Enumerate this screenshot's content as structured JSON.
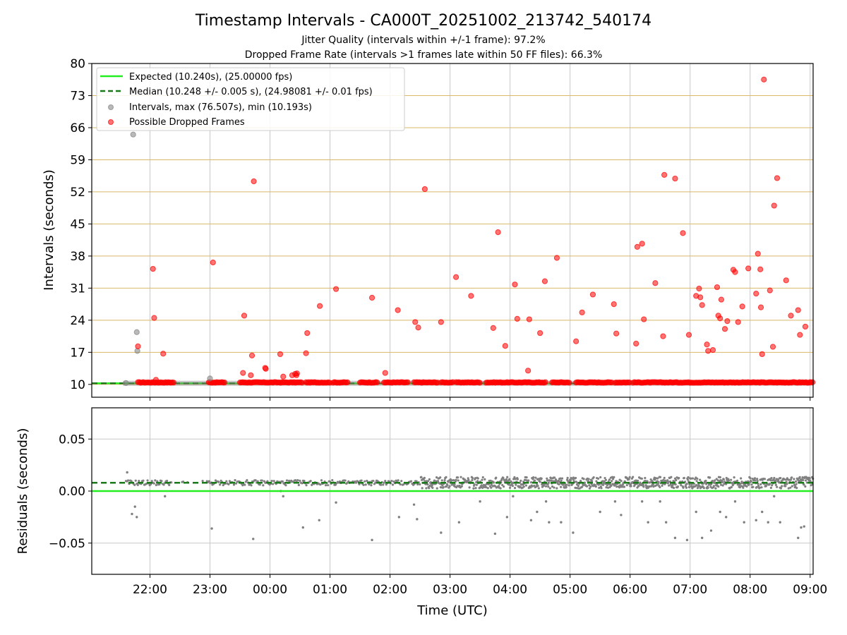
{
  "chart_data": [
    {
      "type": "scatter",
      "title": "Timestamp Intervals - CA000T_20251002_213742_540174",
      "subtitle_1": "Jitter Quality (intervals within +/-1 frame): 97.2%",
      "subtitle_2": "Dropped Frame Rate (intervals >1 frames late within 50 FF files): 66.3%",
      "xlabel": "",
      "ylabel": "Intervals (seconds)",
      "ylim": [
        7.2,
        80
      ],
      "yticks": [
        "10",
        "17",
        "24",
        "31",
        "38",
        "45",
        "52",
        "59",
        "66",
        "73",
        "80"
      ],
      "xlim_hours": [
        21.03,
        33.05
      ],
      "grid": "x gray, y goldenrod",
      "legend": {
        "position": "top-left",
        "entries": [
          "Expected (10.240s), (25.00000 fps)",
          "Median (10.248 +/- 0.005 s), (24.98081 +/- 0.01 fps)",
          "Intervals, max (76.507s), min (10.193s)",
          "Possible Dropped Frames"
        ]
      },
      "expected": 10.24,
      "median": 10.248,
      "interval_outliers": [
        [
          21.72,
          64.5
        ],
        [
          21.78,
          21.4
        ],
        [
          21.79,
          17.3
        ],
        [
          23.0,
          11.3
        ],
        [
          21.6,
          10.3
        ]
      ],
      "dropped_frames": [
        [
          21.8,
          18.3
        ],
        [
          22.05,
          35.2
        ],
        [
          22.07,
          24.5
        ],
        [
          22.1,
          11.0
        ],
        [
          22.22,
          16.7
        ],
        [
          23.05,
          36.6
        ],
        [
          23.55,
          12.5
        ],
        [
          23.57,
          25.0
        ],
        [
          23.68,
          12.0
        ],
        [
          23.7,
          16.3
        ],
        [
          23.73,
          54.3
        ],
        [
          23.92,
          13.6
        ],
        [
          23.93,
          13.4
        ],
        [
          24.17,
          16.6
        ],
        [
          24.22,
          11.7
        ],
        [
          24.37,
          12.0
        ],
        [
          24.42,
          12.3
        ],
        [
          24.44,
          12.0
        ],
        [
          24.45,
          12.4
        ],
        [
          24.6,
          16.8
        ],
        [
          24.62,
          21.2
        ],
        [
          24.83,
          27.1
        ],
        [
          25.1,
          30.8
        ],
        [
          25.7,
          28.9
        ],
        [
          25.92,
          12.5
        ],
        [
          26.13,
          26.2
        ],
        [
          26.42,
          23.6
        ],
        [
          26.47,
          22.4
        ],
        [
          26.58,
          52.6
        ],
        [
          26.85,
          23.6
        ],
        [
          27.1,
          33.4
        ],
        [
          27.35,
          29.3
        ],
        [
          27.72,
          22.3
        ],
        [
          27.8,
          43.2
        ],
        [
          27.92,
          18.4
        ],
        [
          28.08,
          31.8
        ],
        [
          28.12,
          24.3
        ],
        [
          28.3,
          13.0
        ],
        [
          28.32,
          24.2
        ],
        [
          28.5,
          21.2
        ],
        [
          28.58,
          32.5
        ],
        [
          28.78,
          37.6
        ],
        [
          29.1,
          19.4
        ],
        [
          29.2,
          25.7
        ],
        [
          29.38,
          29.6
        ],
        [
          29.73,
          27.5
        ],
        [
          29.77,
          21.1
        ],
        [
          30.1,
          18.9
        ],
        [
          30.12,
          40.0
        ],
        [
          30.2,
          40.7
        ],
        [
          30.23,
          24.2
        ],
        [
          30.42,
          32.1
        ],
        [
          30.55,
          20.5
        ],
        [
          30.57,
          55.7
        ],
        [
          30.75,
          54.9
        ],
        [
          30.88,
          43.0
        ],
        [
          30.98,
          20.8
        ],
        [
          31.1,
          29.3
        ],
        [
          31.15,
          30.9
        ],
        [
          31.17,
          29.0
        ],
        [
          31.2,
          27.3
        ],
        [
          31.28,
          18.7
        ],
        [
          31.3,
          17.3
        ],
        [
          31.38,
          17.5
        ],
        [
          31.45,
          31.2
        ],
        [
          31.47,
          25.0
        ],
        [
          31.5,
          24.4
        ],
        [
          31.52,
          28.5
        ],
        [
          31.58,
          22.1
        ],
        [
          31.62,
          23.8
        ],
        [
          31.72,
          35.0
        ],
        [
          31.75,
          34.5
        ],
        [
          31.8,
          23.6
        ],
        [
          31.87,
          27.0
        ],
        [
          31.97,
          35.3
        ],
        [
          32.1,
          29.8
        ],
        [
          32.13,
          38.5
        ],
        [
          32.17,
          35.1
        ],
        [
          32.18,
          26.8
        ],
        [
          32.2,
          16.6
        ],
        [
          32.23,
          76.5
        ],
        [
          32.33,
          30.5
        ],
        [
          32.38,
          18.2
        ],
        [
          32.4,
          49.0
        ],
        [
          32.45,
          55.0
        ],
        [
          32.6,
          32.7
        ],
        [
          32.68,
          25.0
        ],
        [
          32.8,
          26.2
        ],
        [
          32.83,
          20.8
        ],
        [
          32.92,
          22.6
        ]
      ],
      "baseline_dropped_segments": [
        [
          21.8,
          22.4
        ],
        [
          22.98,
          23.25
        ],
        [
          23.5,
          24.55
        ],
        [
          24.6,
          25.0
        ],
        [
          25.05,
          25.3
        ],
        [
          25.5,
          25.8
        ],
        [
          25.9,
          26.3
        ],
        [
          26.4,
          26.8
        ],
        [
          26.85,
          27.05
        ],
        [
          27.1,
          27.5
        ],
        [
          27.6,
          28.6
        ],
        [
          28.7,
          29.0
        ],
        [
          29.1,
          29.7
        ],
        [
          29.75,
          30.0
        ],
        [
          30.05,
          33.05
        ]
      ]
    },
    {
      "type": "scatter",
      "ylabel": "Residuals (seconds)",
      "xlabel": "Time (UTC)",
      "ylim": [
        -0.08,
        0.08
      ],
      "yticks": [
        "−0.05",
        "0.00",
        "0.05"
      ],
      "xticks": [
        "22:00",
        "23:00",
        "00:00",
        "01:00",
        "02:00",
        "03:00",
        "04:00",
        "05:00",
        "06:00",
        "07:00",
        "08:00",
        "09:00"
      ],
      "expected_residual": 0.0,
      "median_residual": 0.008,
      "outliers": [
        [
          21.62,
          0.018
        ],
        [
          21.7,
          -0.022
        ],
        [
          21.75,
          -0.015
        ],
        [
          21.78,
          -0.025
        ],
        [
          22.25,
          -0.005
        ],
        [
          23.03,
          -0.036
        ],
        [
          23.72,
          -0.046
        ],
        [
          24.18,
          0.0
        ],
        [
          24.22,
          -0.005
        ],
        [
          24.55,
          -0.035
        ],
        [
          24.82,
          -0.028
        ],
        [
          25.1,
          -0.011
        ],
        [
          25.7,
          -0.047
        ],
        [
          26.15,
          -0.025
        ],
        [
          26.4,
          -0.013
        ],
        [
          26.45,
          -0.027
        ],
        [
          26.85,
          -0.04
        ],
        [
          27.15,
          -0.03
        ],
        [
          27.5,
          -0.01
        ],
        [
          27.75,
          -0.041
        ],
        [
          27.95,
          -0.025
        ],
        [
          28.05,
          -0.005
        ],
        [
          28.35,
          -0.028
        ],
        [
          28.45,
          -0.02
        ],
        [
          28.6,
          -0.01
        ],
        [
          28.65,
          -0.03
        ],
        [
          28.85,
          -0.03
        ],
        [
          29.05,
          -0.04
        ],
        [
          29.5,
          -0.02
        ],
        [
          29.75,
          -0.01
        ],
        [
          29.85,
          -0.023
        ],
        [
          30.2,
          -0.01
        ],
        [
          30.3,
          -0.03
        ],
        [
          30.5,
          -0.01
        ],
        [
          30.6,
          -0.03
        ],
        [
          30.75,
          -0.045
        ],
        [
          30.95,
          -0.047
        ],
        [
          31.1,
          -0.02
        ],
        [
          31.2,
          -0.045
        ],
        [
          31.35,
          -0.038
        ],
        [
          31.5,
          -0.02
        ],
        [
          31.6,
          -0.025
        ],
        [
          31.75,
          -0.01
        ],
        [
          31.9,
          -0.03
        ],
        [
          32.1,
          -0.028
        ],
        [
          32.2,
          -0.02
        ],
        [
          32.3,
          -0.03
        ],
        [
          32.4,
          -0.005
        ],
        [
          32.5,
          -0.03
        ],
        [
          32.8,
          -0.045
        ],
        [
          32.85,
          -0.035
        ],
        [
          32.9,
          -0.034
        ]
      ]
    }
  ],
  "colors": {
    "expected": "#22ee22",
    "median": "#1a7a1a",
    "intervals": "#808080",
    "dropped": "#ff0000",
    "ygrid_top": "#d9b86a",
    "grid": "#c8c8c8"
  }
}
